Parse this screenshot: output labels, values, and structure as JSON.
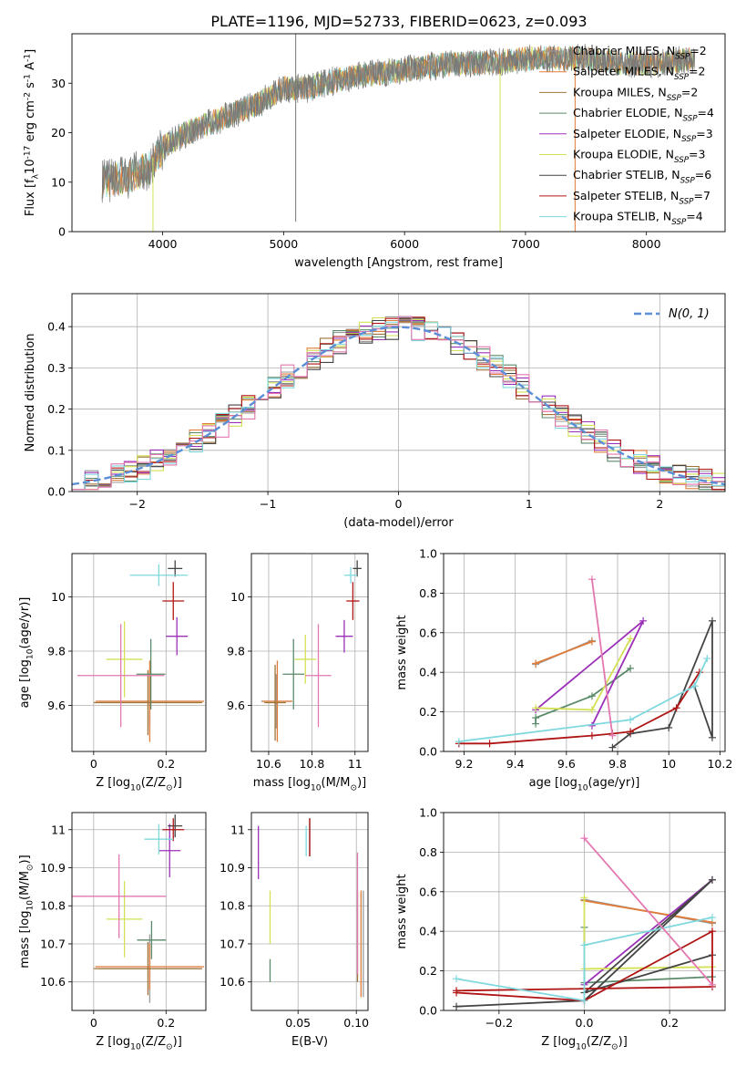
{
  "figure": {
    "title": "PLATE=1196, MJD=52733, FIBERID=0623, z=0.093"
  },
  "series": [
    {
      "name": "Chabrier MILES, N$_{SSP}$=2",
      "color": "#999999",
      "key": "chabrier_miles"
    },
    {
      "name": "Salpeter MILES, N$_{SSP}$=2",
      "color": "#e07b39",
      "key": "salpeter_miles"
    },
    {
      "name": "Kroupa MILES, N$_{SSP}$=2",
      "color": "#a0733a",
      "key": "kroupa_miles"
    },
    {
      "name": "Chabrier ELODIE, N$_{SSP}$=4",
      "color": "#5a8a6a",
      "key": "chabrier_elodie"
    },
    {
      "name": "Salpeter ELODIE, N$_{SSP}$=3",
      "color": "#9b30b8",
      "key": "salpeter_elodie"
    },
    {
      "name": "Kroupa ELODIE, N$_{SSP}$=3",
      "color": "#d4e157",
      "key": "kroupa_elodie"
    },
    {
      "name": "Chabrier STELIB, N$_{SSP}$=6",
      "color": "#444444",
      "key": "chabrier_stelib"
    },
    {
      "name": "Salpeter STELIB, N$_{SSP}$=7",
      "color": "#b01515",
      "key": "salpeter_stelib"
    },
    {
      "name": "Kroupa STELIB, N$_{SSP}$=4",
      "color": "#7fd8de",
      "key": "kroupa_stelib"
    }
  ],
  "chart_data": [
    {
      "id": "spectrum",
      "type": "line",
      "xlabel": "wavelength [Angstrom, rest frame]",
      "ylabel": "Flux [f$_\\lambda$10$^{-17}$ erg cm$^{-2}$ s$^{-1}$ A$^{-1}$]",
      "xlim": [
        3250,
        8650
      ],
      "ylim": [
        0,
        40
      ],
      "xticks": [
        4000,
        5000,
        6000,
        7000,
        8000
      ],
      "yticks": [
        0,
        10,
        20,
        30
      ],
      "legend": "top-right",
      "grid": false,
      "data_color": "#777777",
      "continuum_x": [
        3500,
        3700,
        3900,
        4000,
        4200,
        4500,
        4800,
        5000,
        5200,
        5500,
        5800,
        6100,
        6400,
        6700,
        7000,
        7300,
        7500,
        7800,
        8100,
        8400
      ],
      "continuum_y": [
        10,
        11,
        13,
        17,
        20,
        23,
        26,
        29,
        29,
        31,
        32,
        33,
        34,
        34,
        35,
        35,
        35,
        34,
        34,
        35
      ],
      "spikes": [
        {
          "x": 5100,
          "y_low": 2,
          "y_high": 40
        },
        {
          "x": 6790,
          "y_low": 0,
          "y_high": 32
        },
        {
          "x": 7410,
          "y_low": 0,
          "y_high": 36
        },
        {
          "x": 3920,
          "y_low": 0,
          "y_high": 15
        }
      ]
    },
    {
      "id": "residuals",
      "type": "histogram",
      "xlabel": "(data-model)/error",
      "ylabel": "Normed distribution",
      "xlim": [
        -2.5,
        2.5
      ],
      "ylim": [
        0,
        0.48
      ],
      "xticks": [
        -2,
        -1,
        0,
        1,
        2
      ],
      "yticks": [
        0.0,
        0.1,
        0.2,
        0.3,
        0.4
      ],
      "grid": true,
      "reference_curve": {
        "name": "$\\mathcal{N}(0, 1)$",
        "color": "#5b8ed6"
      },
      "bin_width": 0.1,
      "legend": "top-right"
    },
    {
      "id": "age_vs_Z",
      "type": "scatter",
      "xlabel": "Z [log$_{10}$(Z/Z$_\\odot$)]",
      "ylabel": "age  [log$_{10}$(age/yr)]",
      "xlim": [
        -0.06,
        0.31
      ],
      "ylim": [
        9.43,
        10.16
      ],
      "xticks": [
        0.0,
        0.2
      ],
      "yticks": [
        9.6,
        9.8,
        10.0
      ],
      "grid": true,
      "points": [
        {
          "series": "chabrier_miles",
          "x": 0.155,
          "y": 9.615,
          "xerr": 0.14,
          "yerr": 0.1
        },
        {
          "series": "salpeter_miles",
          "x": 0.155,
          "y": 9.615,
          "xerr": 0.15,
          "yerr": 0.15
        },
        {
          "series": "kroupa_miles",
          "x": 0.15,
          "y": 9.61,
          "xerr": 0.15,
          "yerr": 0.12
        },
        {
          "series": "chabrier_elodie",
          "x": 0.158,
          "y": 9.715,
          "xerr": 0.04,
          "yerr": 0.13
        },
        {
          "series": "salpeter_elodie",
          "x": 0.23,
          "y": 9.855,
          "xerr": 0.03,
          "yerr": 0.07
        },
        {
          "series": "kroupa_elodie",
          "x": 0.085,
          "y": 9.77,
          "xerr": 0.05,
          "yerr": 0.14
        },
        {
          "series": "chabrier_stelib",
          "x": 0.225,
          "y": 10.105,
          "xerr": 0.02,
          "yerr": 0.03
        },
        {
          "series": "salpeter_stelib",
          "x": 0.22,
          "y": 9.985,
          "xerr": 0.03,
          "yerr": 0.07
        },
        {
          "series": "kroupa_stelib",
          "x": 0.18,
          "y": 10.08,
          "xerr": 0.08,
          "yerr": 0.04
        },
        {
          "series": "kroupa_pink",
          "x": 0.075,
          "y": 9.71,
          "xerr": 0.12,
          "yerr": 0.19
        }
      ]
    },
    {
      "id": "age_vs_mass",
      "type": "scatter",
      "xlabel": "mass [log$_{10}$(M/M$_\\odot$)]",
      "xlim": [
        10.52,
        11.06
      ],
      "ylim": [
        9.43,
        10.16
      ],
      "xticks": [
        10.6,
        10.8,
        11.0
      ],
      "yticks": [
        9.6,
        9.8,
        10.0
      ],
      "grid": true,
      "points": [
        {
          "series": "chabrier_miles",
          "x": 10.635,
          "y": 9.615,
          "xerr": 0.07,
          "yerr": 0.1
        },
        {
          "series": "salpeter_miles",
          "x": 10.64,
          "y": 9.615,
          "xerr": 0.07,
          "yerr": 0.15
        },
        {
          "series": "kroupa_miles",
          "x": 10.63,
          "y": 9.61,
          "xerr": 0.05,
          "yerr": 0.14
        },
        {
          "series": "chabrier_elodie",
          "x": 10.715,
          "y": 9.715,
          "xerr": 0.05,
          "yerr": 0.13
        },
        {
          "series": "salpeter_elodie",
          "x": 10.95,
          "y": 9.855,
          "xerr": 0.04,
          "yerr": 0.06
        },
        {
          "series": "kroupa_elodie",
          "x": 10.77,
          "y": 9.77,
          "xerr": 0.05,
          "yerr": 0.09
        },
        {
          "series": "chabrier_stelib",
          "x": 11.01,
          "y": 10.105,
          "xerr": 0.02,
          "yerr": 0.03
        },
        {
          "series": "salpeter_stelib",
          "x": 10.99,
          "y": 9.985,
          "xerr": 0.03,
          "yerr": 0.07
        },
        {
          "series": "kroupa_stelib",
          "x": 10.98,
          "y": 10.08,
          "xerr": 0.03,
          "yerr": 0.03
        },
        {
          "series": "kroupa_pink",
          "x": 10.83,
          "y": 9.71,
          "xerr": 0.06,
          "yerr": 0.19
        }
      ]
    },
    {
      "id": "massweight_vs_age",
      "type": "line",
      "xlabel": "age  [log$_{10}$(age/yr)]",
      "ylabel": "mass weight",
      "xlim": [
        9.12,
        10.22
      ],
      "ylim": [
        0,
        1.0
      ],
      "xticks": [
        9.2,
        9.4,
        9.6,
        9.8,
        10.0,
        10.2
      ],
      "yticks": [
        0.0,
        0.2,
        0.4,
        0.6,
        0.8,
        1.0
      ],
      "grid": true,
      "lines": [
        {
          "series": "chabrier_miles",
          "x": [
            9.48,
            9.7
          ],
          "y": [
            0.44,
            0.56
          ]
        },
        {
          "series": "salpeter_miles",
          "x": [
            9.48,
            9.7
          ],
          "y": [
            0.445,
            0.555
          ]
        },
        {
          "series": "chabrier_elodie",
          "x": [
            9.48,
            9.48,
            9.7,
            9.85
          ],
          "y": [
            0.14,
            0.17,
            0.28,
            0.42
          ]
        },
        {
          "series": "salpeter_elodie",
          "x": [
            9.48,
            9.9,
            9.7
          ],
          "y": [
            0.21,
            0.66,
            0.13
          ]
        },
        {
          "series": "kroupa_elodie",
          "x": [
            9.48,
            9.7,
            9.85
          ],
          "y": [
            0.22,
            0.21,
            0.57
          ]
        },
        {
          "series": "chabrier_stelib",
          "x": [
            9.78,
            9.85,
            10.0,
            10.17,
            10.17,
            10.1
          ],
          "y": [
            0.02,
            0.09,
            0.12,
            0.66,
            0.07,
            0.33
          ]
        },
        {
          "series": "salpeter_stelib",
          "x": [
            9.18,
            9.3,
            9.7,
            9.78,
            9.85,
            10.03,
            10.12
          ],
          "y": [
            0.04,
            0.04,
            0.08,
            0.09,
            0.1,
            0.22,
            0.4
          ]
        },
        {
          "series": "kroupa_stelib",
          "x": [
            9.18,
            9.85,
            10.1,
            10.15
          ],
          "y": [
            0.05,
            0.16,
            0.33,
            0.47
          ]
        },
        {
          "series": "kroupa_pink",
          "x": [
            9.7,
            9.78
          ],
          "y": [
            0.87,
            0.08
          ]
        }
      ]
    },
    {
      "id": "mass_vs_Z",
      "type": "scatter",
      "xlabel": "Z [log$_{10}$(Z/Z$_\\odot$)]",
      "ylabel": "mass [log$_{10}$(M/M$_\\odot$)]",
      "xlim": [
        -0.06,
        0.31
      ],
      "ylim": [
        10.525,
        11.045
      ],
      "xticks": [
        0.0,
        0.2
      ],
      "yticks": [
        10.6,
        10.7,
        10.8,
        10.9,
        11.0
      ],
      "grid": true,
      "points": [
        {
          "series": "chabrier_miles",
          "x": 0.155,
          "y": 10.635,
          "xerr": 0.14,
          "yerr": 0.09
        },
        {
          "series": "salpeter_miles",
          "x": 0.155,
          "y": 10.64,
          "xerr": 0.15,
          "yerr": 0.06
        },
        {
          "series": "kroupa_miles",
          "x": 0.15,
          "y": 10.635,
          "xerr": 0.15,
          "yerr": 0.07
        },
        {
          "series": "chabrier_elodie",
          "x": 0.16,
          "y": 10.71,
          "xerr": 0.04,
          "yerr": 0.05
        },
        {
          "series": "salpeter_elodie",
          "x": 0.21,
          "y": 10.945,
          "xerr": 0.03,
          "yerr": 0.07
        },
        {
          "series": "kroupa_elodie",
          "x": 0.085,
          "y": 10.765,
          "xerr": 0.05,
          "yerr": 0.1
        },
        {
          "series": "chabrier_stelib",
          "x": 0.225,
          "y": 11.01,
          "xerr": 0.02,
          "yerr": 0.03
        },
        {
          "series": "salpeter_stelib",
          "x": 0.22,
          "y": 11.0,
          "xerr": 0.03,
          "yerr": 0.03
        },
        {
          "series": "kroupa_stelib",
          "x": 0.18,
          "y": 10.975,
          "xerr": 0.04,
          "yerr": 0.04
        },
        {
          "series": "kroupa_pink",
          "x": 0.07,
          "y": 10.825,
          "xerr": 0.13,
          "yerr": 0.11
        }
      ]
    },
    {
      "id": "mass_vs_EBV",
      "type": "scatter",
      "xlabel": "E(B-V)",
      "xlim": [
        0.01,
        0.11
      ],
      "ylim": [
        10.525,
        11.045
      ],
      "xticks": [
        0.05,
        0.1
      ],
      "xticklabels": [
        "0.05",
        "0.10"
      ],
      "yticks": [
        10.6,
        10.7,
        10.8,
        10.9,
        11.0
      ],
      "grid": true,
      "points": [
        {
          "series": "chabrier_miles",
          "x": 0.106,
          "y": 10.7,
          "xerr": 0,
          "yerr": 0.14
        },
        {
          "series": "salpeter_miles",
          "x": 0.104,
          "y": 10.7,
          "xerr": 0,
          "yerr": 0.14
        },
        {
          "series": "kroupa_miles",
          "x": 0.101,
          "y": 10.72,
          "xerr": 0,
          "yerr": 0.12
        },
        {
          "series": "chabrier_elodie",
          "x": 0.026,
          "y": 10.63,
          "xerr": 0,
          "yerr": 0.03
        },
        {
          "series": "salpeter_elodie",
          "x": 0.016,
          "y": 10.94,
          "xerr": 0,
          "yerr": 0.07
        },
        {
          "series": "kroupa_elodie",
          "x": 0.026,
          "y": 10.77,
          "xerr": 0,
          "yerr": 0.07
        },
        {
          "series": "chabrier_stelib",
          "x": 0.06,
          "y": 10.98,
          "xerr": 0,
          "yerr": 0.05
        },
        {
          "series": "salpeter_stelib",
          "x": 0.06,
          "y": 10.98,
          "xerr": 0,
          "yerr": 0.05
        },
        {
          "series": "kroupa_stelib",
          "x": 0.057,
          "y": 10.97,
          "xerr": 0,
          "yerr": 0.04
        },
        {
          "series": "kroupa_pink",
          "x": 0.101,
          "y": 10.78,
          "xerr": 0,
          "yerr": 0.16
        }
      ]
    },
    {
      "id": "massweight_vs_Z",
      "type": "line",
      "xlabel": "Z [log$_{10}$(Z/Z$_\\odot$)]",
      "ylabel": "mass weight",
      "xlim": [
        -0.33,
        0.33
      ],
      "ylim": [
        0,
        1.0
      ],
      "xticks": [
        -0.2,
        0.0,
        0.2
      ],
      "xticklabels": [
        "−0.2",
        "0.0",
        "0.2"
      ],
      "yticks": [
        0.0,
        0.2,
        0.4,
        0.6,
        0.8,
        1.0
      ],
      "grid": true,
      "lines": [
        {
          "series": "chabrier_miles",
          "x": [
            0.0,
            0.3
          ],
          "y": [
            0.56,
            0.44
          ]
        },
        {
          "series": "salpeter_miles",
          "x": [
            0.0,
            0.3
          ],
          "y": [
            0.555,
            0.445
          ]
        },
        {
          "series": "chabrier_elodie",
          "x": [
            0.0,
            0.0,
            0.3
          ],
          "y": [
            0.42,
            0.14,
            0.17
          ]
        },
        {
          "series": "salpeter_elodie",
          "x": [
            0.0,
            0.3
          ],
          "y": [
            0.13,
            0.66
          ]
        },
        {
          "series": "kroupa_elodie",
          "x": [
            0.0,
            0.0,
            0.3
          ],
          "y": [
            0.57,
            0.21,
            0.22
          ]
        },
        {
          "series": "chabrier_stelib",
          "x": [
            -0.3,
            0.0,
            0.3,
            0.0,
            0.3
          ],
          "y": [
            0.02,
            0.05,
            0.66,
            0.09,
            0.28
          ]
        },
        {
          "series": "salpeter_stelib",
          "x": [
            -0.3,
            0.0,
            0.3,
            0.3,
            -0.3
          ],
          "y": [
            0.09,
            0.05,
            0.4,
            0.12,
            0.1
          ]
        },
        {
          "series": "kroupa_stelib",
          "x": [
            -0.3,
            0.0,
            0.0,
            0.3
          ],
          "y": [
            0.16,
            0.05,
            0.33,
            0.47
          ]
        },
        {
          "series": "kroupa_pink",
          "x": [
            0.0,
            0.3
          ],
          "y": [
            0.87,
            0.13
          ]
        }
      ]
    }
  ]
}
